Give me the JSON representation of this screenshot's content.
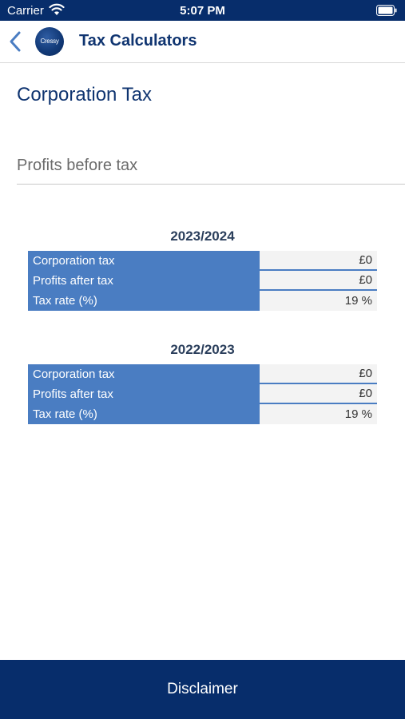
{
  "status_bar": {
    "carrier": "Carrier",
    "time": "5:07 PM"
  },
  "nav": {
    "title": "Tax Calculators",
    "logo_text": "Cressy"
  },
  "page": {
    "title": "Corporation Tax"
  },
  "input": {
    "placeholder": "Profits before tax",
    "value": ""
  },
  "years": [
    {
      "title": "2023/2024",
      "rows": [
        {
          "label": "Corporation tax",
          "value": "£0"
        },
        {
          "label": "Profits after tax",
          "value": "£0"
        },
        {
          "label": "Tax rate (%)",
          "value": "19 %"
        }
      ]
    },
    {
      "title": "2022/2023",
      "rows": [
        {
          "label": "Corporation tax",
          "value": "£0"
        },
        {
          "label": "Profits after tax",
          "value": "£0"
        },
        {
          "label": "Tax rate (%)",
          "value": "19 %"
        }
      ]
    }
  ],
  "footer": {
    "label": "Disclaimer"
  },
  "colors": {
    "brand_navy": "#072d6b",
    "row_blue": "#4a7dc2",
    "title_navy": "#0f3470"
  },
  "icons": {
    "back": "chevron-left-icon",
    "wifi": "wifi-icon",
    "battery": "battery-icon"
  }
}
